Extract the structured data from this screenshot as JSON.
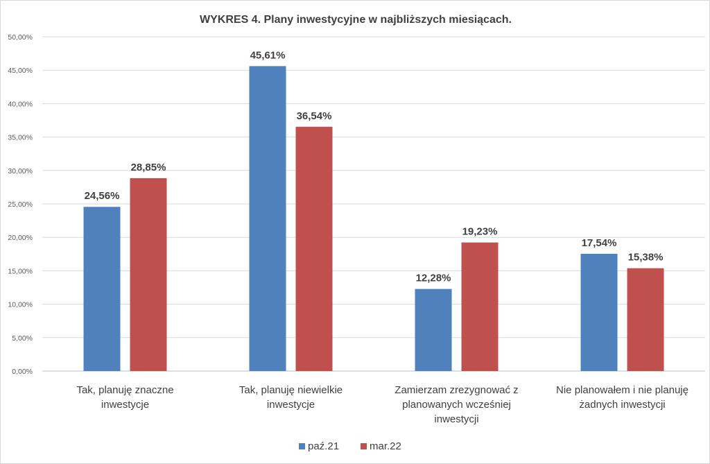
{
  "chart_data": {
    "type": "bar",
    "title": "WYKRES 4. Plany inwestycyjne w najbliższych miesiącach.",
    "categories": [
      [
        "Tak, planuję znaczne",
        "inwestycje"
      ],
      [
        "Tak, planuję niewielkie",
        "inwestycje"
      ],
      [
        "Zamierzam zrezygnować z",
        "planowanych wcześniej",
        "inwestycji"
      ],
      [
        "Nie planowałem i nie planuję",
        "żadnych inwestycji"
      ]
    ],
    "series": [
      {
        "name": "paź.21",
        "color": "#4f81bd",
        "values": [
          24.56,
          45.61,
          12.28,
          17.54
        ],
        "labels": [
          "24,56%",
          "45,61%",
          "12,28%",
          "17,54%"
        ]
      },
      {
        "name": "mar.22",
        "color": "#c0504d",
        "values": [
          28.85,
          36.54,
          19.23,
          15.38
        ],
        "labels": [
          "28,85%",
          "36,54%",
          "19,23%",
          "15,38%"
        ]
      }
    ],
    "y_ticks": [
      "0,00%",
      "5,00%",
      "10,00%",
      "15,00%",
      "20,00%",
      "25,00%",
      "30,00%",
      "35,00%",
      "40,00%",
      "45,00%",
      "50,00%"
    ],
    "ylim": [
      0,
      50
    ],
    "ystep": 5,
    "grid": true,
    "legend_position": "bottom"
  }
}
